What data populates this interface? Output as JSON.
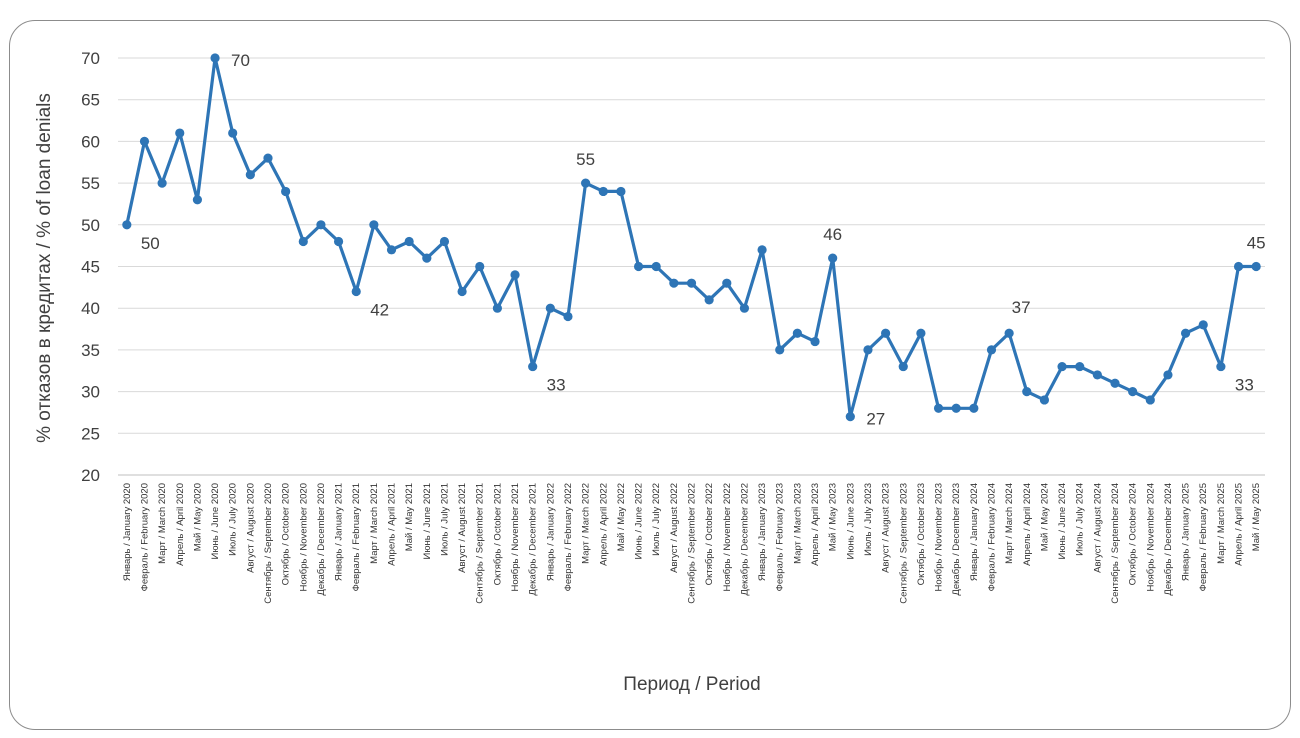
{
  "chart_data": {
    "type": "line",
    "title": "",
    "ylabel": "% отказов в кредитах / % of loan denials",
    "xlabel": "Период / Period",
    "ylim": [
      20,
      70
    ],
    "yticks": [
      20,
      25,
      30,
      35,
      40,
      45,
      50,
      55,
      60,
      65,
      70
    ],
    "grid": true,
    "line_color": "#2e75b6",
    "categories": [
      "Январь / January 2020",
      "Февраль / February 2020",
      "Март / March 2020",
      "Апрель / April 2020",
      "Май / May 2020",
      "Июнь / June 2020",
      "Июль / July 2020",
      "Август / August 2020",
      "Сентябрь / September 2020",
      "Октябрь / October 2020",
      "Ноябрь / November 2020",
      "Декабрь / December 2020",
      "Январь / January 2021",
      "Февраль / February 2021",
      "Март / March 2021",
      "Апрель / April 2021",
      "Май / May 2021",
      "Июнь / June 2021",
      "Июль / July 2021",
      "Август / August 2021",
      "Сентябрь / September 2021",
      "Октябрь / October 2021",
      "Ноябрь / November 2021",
      "Декабрь / December 2021",
      "Январь / January 2022",
      "Февраль / February 2022",
      "Март / March 2022",
      "Апрель / April 2022",
      "Май / May 2022",
      "Июнь / June 2022",
      "Июль / July 2022",
      "Август / August 2022",
      "Сентябрь / September 2022",
      "Октябрь / October 2022",
      "Ноябрь / November 2022",
      "Декабрь / December 2022",
      "Январь / January 2023",
      "Февраль / February 2023",
      "Март / March 2023",
      "Апрель / April 2023",
      "Май / May 2023",
      "Июнь / June 2023",
      "Июль / July 2023",
      "Август / August 2023",
      "Сентябрь / September 2023",
      "Октябрь / October 2023",
      "Ноябрь / November 2023",
      "Декабрь / December 2023",
      "Январь / January 2024",
      "Февраль / February 2024",
      "Март / March 2024",
      "Апрель / April 2024",
      "Май / May 2024",
      "Июнь / June 2024",
      "Июль / July 2024",
      "Август / August 2024",
      "Сентябрь / September 2024",
      "Октябрь / October 2024",
      "Ноябрь / November 2024",
      "Декабрь / December 2024",
      "Январь / January 2025",
      "Февраль / February 2025",
      "Март / March 2025",
      "Апрель / April 2025",
      "Май / May 2025"
    ],
    "values": [
      50,
      60,
      55,
      61,
      53,
      70,
      61,
      56,
      58,
      54,
      48,
      50,
      48,
      42,
      50,
      47,
      48,
      46,
      48,
      42,
      45,
      40,
      44,
      33,
      40,
      39,
      55,
      54,
      54,
      45,
      45,
      43,
      43,
      41,
      43,
      40,
      47,
      35,
      37,
      36,
      46,
      27,
      35,
      37,
      33,
      37,
      28,
      28,
      28,
      35,
      37,
      30,
      29,
      33,
      33,
      32,
      31,
      30,
      29,
      32,
      37,
      38,
      33,
      45,
      45
    ],
    "data_labels": [
      {
        "index": 0,
        "text": "50",
        "pos": "below-right"
      },
      {
        "index": 5,
        "text": "70",
        "pos": "right"
      },
      {
        "index": 13,
        "text": "42",
        "pos": "below-right"
      },
      {
        "index": 23,
        "text": "33",
        "pos": "below-right"
      },
      {
        "index": 26,
        "text": "55",
        "pos": "above"
      },
      {
        "index": 40,
        "text": "46",
        "pos": "above"
      },
      {
        "index": 41,
        "text": "27",
        "pos": "right"
      },
      {
        "index": 50,
        "text": "37",
        "pos": "above-right"
      },
      {
        "index": 62,
        "text": "33",
        "pos": "below-right"
      },
      {
        "index": 64,
        "text": "45",
        "pos": "above"
      }
    ]
  }
}
